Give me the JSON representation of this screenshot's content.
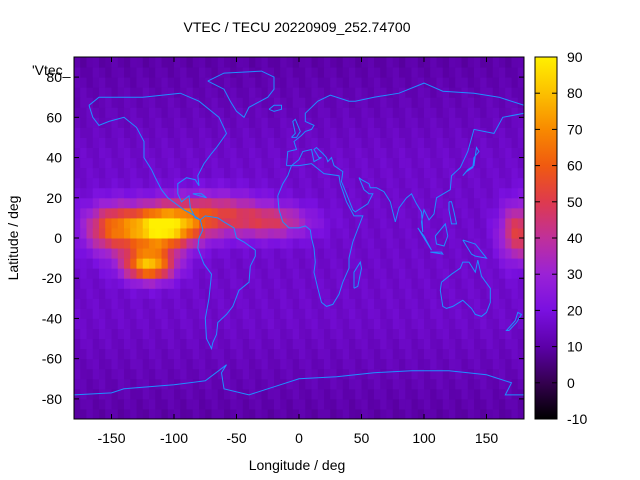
{
  "chart_data": {
    "type": "heatmap",
    "title": "VTEC / TECU 20220909_252.74700",
    "xlabel": "Longitude / deg",
    "ylabel": "Latitude / deg",
    "key_label": "'Vtec_",
    "xlim": [
      -180,
      180
    ],
    "ylim": [
      -90,
      90
    ],
    "x_ticks": [
      -150,
      -100,
      -50,
      0,
      50,
      100,
      150
    ],
    "y_ticks": [
      -80,
      -60,
      -40,
      -20,
      0,
      20,
      40,
      60,
      80
    ],
    "colorbar": {
      "range": [
        -10,
        90
      ],
      "ticks": [
        -10,
        0,
        10,
        20,
        30,
        40,
        50,
        60,
        70,
        80,
        90
      ],
      "palette": [
        "#000000",
        "#34004f",
        "#5c00a8",
        "#7a10e0",
        "#9a22d6",
        "#c0309a",
        "#de3a4e",
        "#f05a10",
        "#f88a00",
        "#fcc000",
        "#fff000"
      ]
    },
    "grid": false,
    "map_overlay": "coastlines",
    "coastline_color": "#1e90ff",
    "background_value": 16,
    "features": [
      {
        "lon": -110,
        "lat": 5,
        "peak": 88,
        "spread_lon": 28,
        "spread_lat": 10
      },
      {
        "lon": -120,
        "lat": -13,
        "peak": 78,
        "spread_lon": 20,
        "spread_lat": 8
      },
      {
        "lon": -70,
        "lat": 12,
        "peak": 50,
        "spread_lon": 40,
        "spread_lat": 10
      },
      {
        "lon": -150,
        "lat": 5,
        "peak": 55,
        "spread_lon": 22,
        "spread_lat": 12
      },
      {
        "lon": -20,
        "lat": 8,
        "peak": 42,
        "spread_lon": 30,
        "spread_lat": 8
      },
      {
        "lon": 175,
        "lat": 3,
        "peak": 52,
        "spread_lon": 14,
        "spread_lat": 14
      }
    ]
  }
}
